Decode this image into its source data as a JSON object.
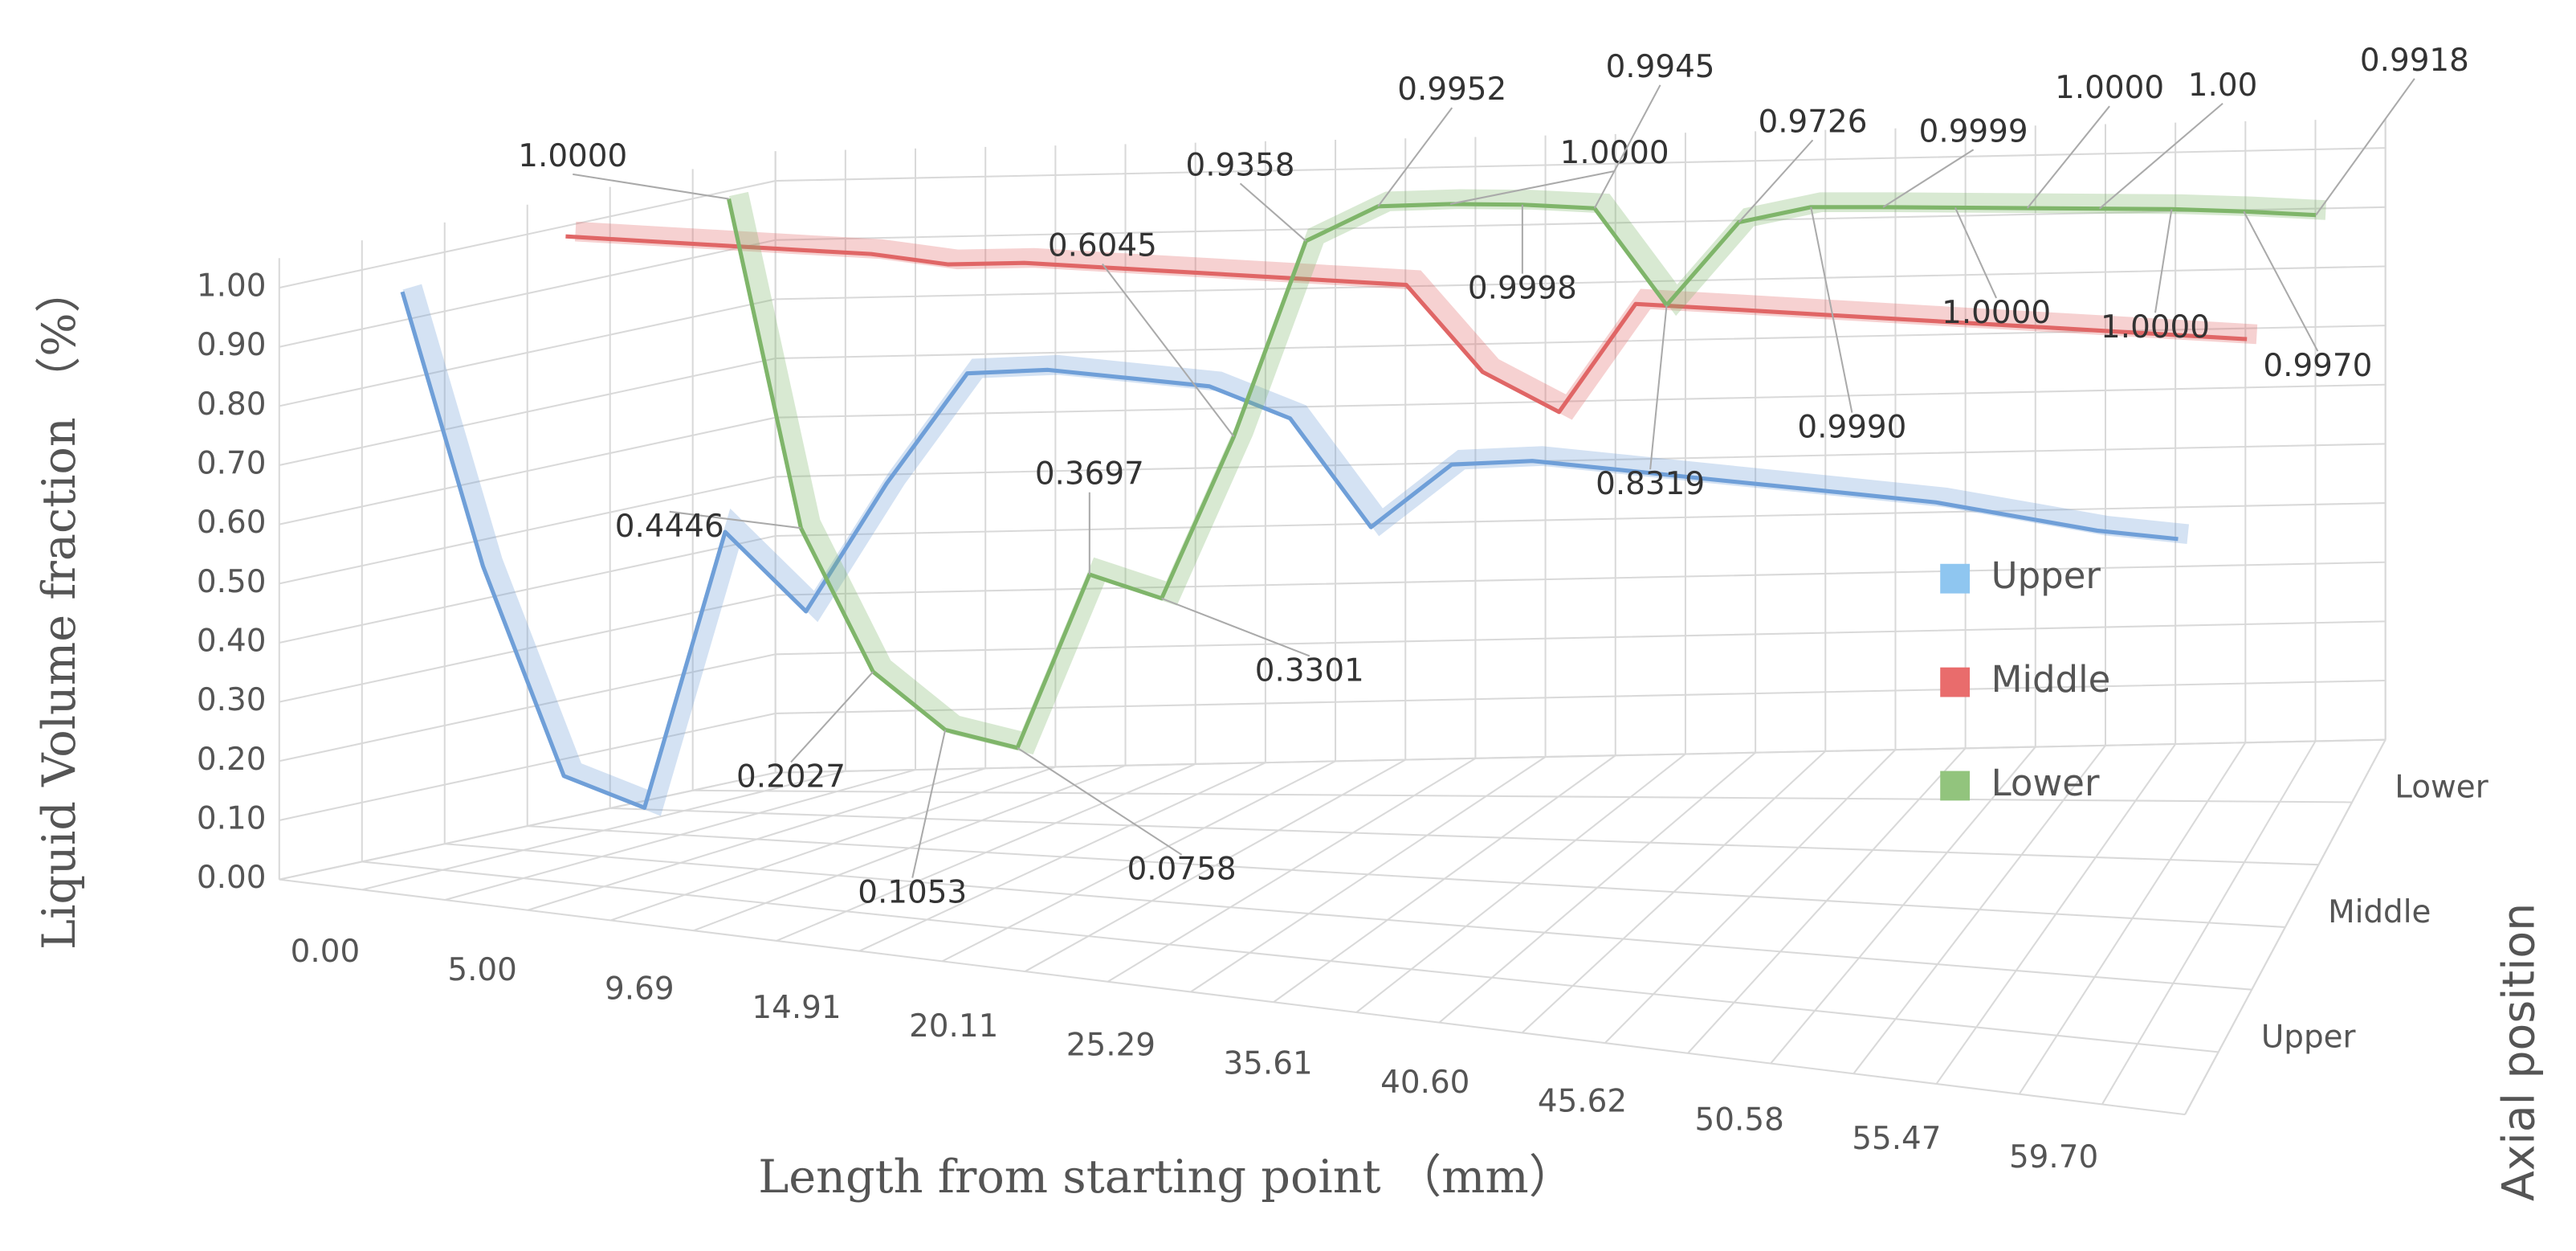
{
  "chart_data": {
    "type": "line",
    "x_label": "Length from starting point （mm）",
    "y_label": "Liquid Volume fraction （%）",
    "z_label": "Axial position",
    "categories": [
      "0.00",
      null,
      "5.00",
      null,
      "9.69",
      null,
      "14.91",
      null,
      "20.11",
      null,
      "25.29",
      null,
      "35.61",
      null,
      "40.60",
      null,
      "45.62",
      null,
      "50.58",
      null,
      "55.47",
      null,
      "59.70"
    ],
    "series": [
      {
        "name": "Upper",
        "color": "#6f9fd8",
        "legend_color": "#8fc6f0",
        "values": [
          0.97,
          0.52,
          0.18,
          0.14,
          0.62,
          0.5,
          0.73,
          0.93,
          0.95,
          0.95,
          0.95,
          0.91,
          0.74,
          0.86,
          0.88,
          0.88,
          0.88,
          0.88,
          0.88,
          0.88,
          0.87,
          0.86,
          0.86
        ]
      },
      {
        "name": "Middle",
        "color": "#e06666",
        "legend_color": "#e96c6c",
        "values": [
          1,
          1,
          1,
          1,
          1,
          0.99,
          1,
          1,
          1,
          1,
          1,
          1,
          0.86,
          0.8,
          0.99,
          0.99,
          0.99,
          0.99,
          0.99,
          0.99,
          0.99,
          0.99,
          0.99
        ]
      },
      {
        "name": "Lower",
        "color": "#7fb56a",
        "legend_color": "#92c47d",
        "values": [
          1,
          0.4446,
          0.2027,
          0.1053,
          0.0758,
          0.3697,
          0.3301,
          0.6045,
          0.9358,
          0.9952,
          1,
          0.9998,
          0.9945,
          0.8319,
          0.9726,
          0.999,
          0.9999,
          1,
          1,
          1,
          1,
          0.997,
          0.9918
        ],
        "value_labels": [
          "1.0000",
          "0.4446",
          "0.2027",
          "0.1053",
          "0.0758",
          "0.3697",
          "0.3301",
          "0.6045",
          "0.9358",
          "0.9952",
          "1.0000",
          "0.9998",
          "0.9945",
          "0.8319",
          "0.9726",
          "0.9990",
          "0.9999",
          "1.0000",
          "1.0000",
          "1.00",
          "1.0000",
          "0.9970",
          "0.9918"
        ]
      }
    ],
    "ylim": [
      0,
      1
    ],
    "yticks": [
      {
        "value": 0,
        "label": "0.00"
      },
      {
        "value": 0.1,
        "label": "0.10"
      },
      {
        "value": 0.2,
        "label": "0.20"
      },
      {
        "value": 0.3,
        "label": "0.30"
      },
      {
        "value": 0.4,
        "label": "0.40"
      },
      {
        "value": 0.5,
        "label": "0.50"
      },
      {
        "value": 0.6,
        "label": "0.60"
      },
      {
        "value": 0.7,
        "label": "0.70"
      },
      {
        "value": 0.8,
        "label": "0.80"
      },
      {
        "value": 0.9,
        "label": "0.90"
      },
      {
        "value": 1,
        "label": "1.00"
      }
    ],
    "grid": true,
    "legend": "right"
  }
}
